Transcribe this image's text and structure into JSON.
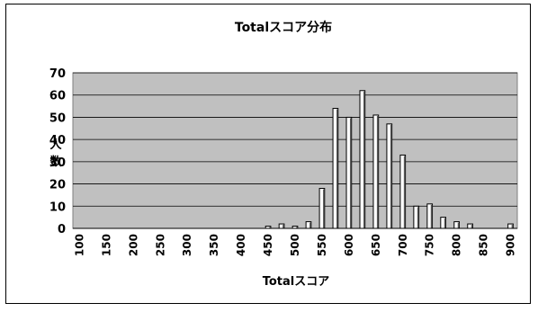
{
  "chart_data": {
    "type": "bar",
    "title": "Totalスコア分布",
    "xlabel": "Totalスコア",
    "ylabel": "人数",
    "ylim": [
      0,
      70
    ],
    "yticks": [
      0,
      10,
      20,
      30,
      40,
      50,
      60,
      70
    ],
    "grid": true,
    "legend": "none",
    "categories": [
      100,
      125,
      150,
      175,
      200,
      225,
      250,
      275,
      300,
      325,
      350,
      375,
      400,
      425,
      450,
      475,
      500,
      525,
      550,
      575,
      600,
      625,
      650,
      675,
      700,
      725,
      750,
      775,
      800,
      825,
      850,
      875,
      900
    ],
    "tick_labels": [
      "100",
      "",
      "150",
      "",
      "200",
      "",
      "250",
      "",
      "300",
      "",
      "350",
      "",
      "400",
      "",
      "450",
      "",
      "500",
      "",
      "550",
      "",
      "600",
      "",
      "650",
      "",
      "700",
      "",
      "750",
      "",
      "800",
      "",
      "850",
      "",
      "900"
    ],
    "values": [
      0,
      0,
      0,
      0,
      0,
      0,
      0,
      0,
      0,
      0,
      0,
      0,
      0,
      0,
      1,
      2,
      1,
      3,
      18,
      54,
      50,
      62,
      51,
      47,
      33,
      10,
      11,
      5,
      3,
      2,
      0,
      0,
      2
    ]
  },
  "colors": {
    "plot_bg": "#c0c0c0",
    "bar_fill": "#ffffff",
    "bar_stroke": "#000000",
    "grid": "#000000"
  }
}
